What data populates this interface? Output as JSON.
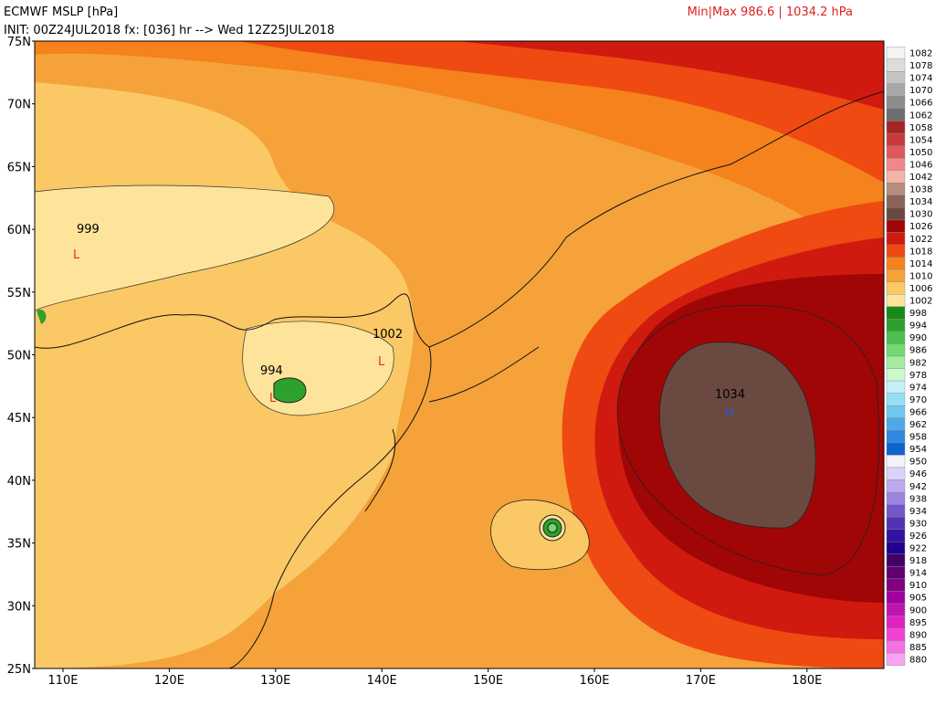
{
  "header": {
    "title": "ECMWF MSLP [hPa]",
    "init": "INIT: 00Z24JUL2018 fx: [036] hr --> Wed 12Z25JUL2018",
    "minmax": "Min|Max 986.6 | 1034.2 hPa"
  },
  "lat_labels": [
    "75N",
    "70N",
    "65N",
    "60N",
    "55N",
    "50N",
    "45N",
    "40N",
    "35N",
    "30N",
    "25N"
  ],
  "lon_labels": [
    "110E",
    "120E",
    "130E",
    "140E",
    "150E",
    "160E",
    "170E",
    "180E"
  ],
  "annotations": {
    "low1_value": "999",
    "low1_mark": "L",
    "low2_value": "994",
    "low2_mark": "L",
    "low3_value": "1002",
    "low3_mark": "L",
    "high_value": "1034",
    "high_mark": "H"
  },
  "colorbar": {
    "levels": [
      1082,
      1078,
      1074,
      1070,
      1066,
      1062,
      1058,
      1054,
      1050,
      1046,
      1042,
      1038,
      1034,
      1030,
      1026,
      1022,
      1018,
      1014,
      1010,
      1006,
      1002,
      998,
      994,
      990,
      986,
      982,
      978,
      974,
      970,
      966,
      962,
      958,
      954,
      950,
      946,
      942,
      938,
      934,
      930,
      926,
      922,
      918,
      914,
      910,
      905,
      900,
      895,
      890,
      885,
      880
    ],
    "colors": [
      "#f4f4f4",
      "#dcdcdc",
      "#c4c4c4",
      "#a8a8a8",
      "#8c8c8c",
      "#6e6e6e",
      "#a82424",
      "#c83a3a",
      "#e05858",
      "#f08888",
      "#f0b4a8",
      "#b88c7c",
      "#8a6458",
      "#6a4a40",
      "#a00606",
      "#d01a10",
      "#ee4a12",
      "#f5821c",
      "#f8a23a",
      "#fbc866",
      "#fde49a",
      "#178a17",
      "#2ea02e",
      "#4cc04c",
      "#72d872",
      "#a4eca4",
      "#ccf8cc",
      "#c4f0f8",
      "#94e0f2",
      "#70c8f0",
      "#50a8e8",
      "#3088e0",
      "#1064d0",
      "#f2f2ff",
      "#dad2f8",
      "#bcaaf0",
      "#9c84e0",
      "#7456c8",
      "#5232b0",
      "#3412a0",
      "#220090",
      "#420062",
      "#620072",
      "#820082",
      "#a200a2",
      "#c212b2",
      "#e022c2",
      "#f042d2",
      "#f272e2",
      "#f8a4f0"
    ]
  }
}
